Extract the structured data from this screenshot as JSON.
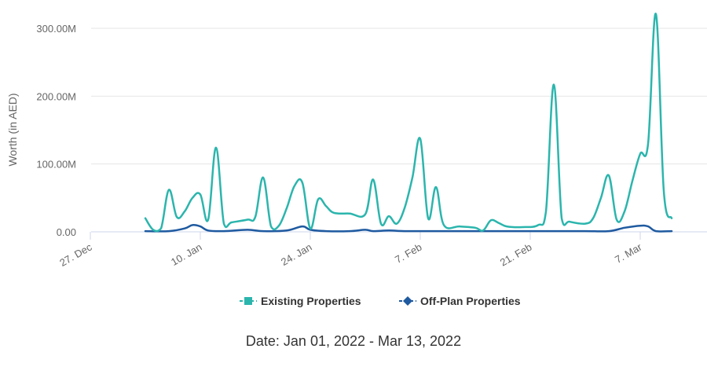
{
  "chart_data": {
    "type": "line",
    "ylabel": "Worth (in AED)",
    "ylim": [
      0,
      320
    ],
    "y_ticks": [
      {
        "value": 0,
        "label": "0.00"
      },
      {
        "value": 100,
        "label": "100.00M"
      },
      {
        "value": 200,
        "label": "200.00M"
      },
      {
        "value": 300,
        "label": "300.00M"
      }
    ],
    "x_ticks": [
      {
        "date": "2021-12-27",
        "label": "27. Dec"
      },
      {
        "date": "2022-01-10",
        "label": "10. Jan"
      },
      {
        "date": "2022-01-24",
        "label": "24. Jan"
      },
      {
        "date": "2022-02-07",
        "label": "7. Feb"
      },
      {
        "date": "2022-02-21",
        "label": "21. Feb"
      },
      {
        "date": "2022-03-07",
        "label": "7. Mar"
      }
    ],
    "grid": true,
    "legend_position": "bottom-center",
    "colors": {
      "existing": "#2bb5ad",
      "offplan": "#1f5aa0"
    },
    "series": [
      {
        "name": "Existing Properties",
        "points": [
          [
            "2022-01-03",
            20
          ],
          [
            "2022-01-04",
            3
          ],
          [
            "2022-01-05",
            5
          ],
          [
            "2022-01-06",
            62
          ],
          [
            "2022-01-07",
            22
          ],
          [
            "2022-01-08",
            30
          ],
          [
            "2022-01-09",
            50
          ],
          [
            "2022-01-10",
            55
          ],
          [
            "2022-01-11",
            18
          ],
          [
            "2022-01-12",
            124
          ],
          [
            "2022-01-13",
            12
          ],
          [
            "2022-01-14",
            14
          ],
          [
            "2022-01-16",
            18
          ],
          [
            "2022-01-17",
            22
          ],
          [
            "2022-01-18",
            80
          ],
          [
            "2022-01-19",
            8
          ],
          [
            "2022-01-20",
            9
          ],
          [
            "2022-01-21",
            35
          ],
          [
            "2022-01-22",
            68
          ],
          [
            "2022-01-23",
            72
          ],
          [
            "2022-01-24",
            5
          ],
          [
            "2022-01-25",
            48
          ],
          [
            "2022-01-26",
            38
          ],
          [
            "2022-01-27",
            28
          ],
          [
            "2022-01-29",
            27
          ],
          [
            "2022-01-31",
            26
          ],
          [
            "2022-02-01",
            77
          ],
          [
            "2022-02-02",
            12
          ],
          [
            "2022-02-03",
            23
          ],
          [
            "2022-02-04",
            12
          ],
          [
            "2022-02-05",
            35
          ],
          [
            "2022-02-06",
            80
          ],
          [
            "2022-02-07",
            137
          ],
          [
            "2022-02-08",
            20
          ],
          [
            "2022-02-09",
            66
          ],
          [
            "2022-02-10",
            10
          ],
          [
            "2022-02-12",
            8
          ],
          [
            "2022-02-14",
            6
          ],
          [
            "2022-02-15",
            2
          ],
          [
            "2022-02-16",
            17
          ],
          [
            "2022-02-17",
            13
          ],
          [
            "2022-02-18",
            8
          ],
          [
            "2022-02-20",
            7
          ],
          [
            "2022-02-22",
            10
          ],
          [
            "2022-02-23",
            30
          ],
          [
            "2022-02-24",
            217
          ],
          [
            "2022-02-25",
            20
          ],
          [
            "2022-02-26",
            15
          ],
          [
            "2022-02-28",
            12
          ],
          [
            "2022-03-01",
            20
          ],
          [
            "2022-03-02",
            50
          ],
          [
            "2022-03-03",
            83
          ],
          [
            "2022-03-04",
            18
          ],
          [
            "2022-03-05",
            30
          ],
          [
            "2022-03-06",
            75
          ],
          [
            "2022-03-07",
            115
          ],
          [
            "2022-03-08",
            130
          ],
          [
            "2022-03-09",
            321
          ],
          [
            "2022-03-10",
            60
          ],
          [
            "2022-03-11",
            20
          ]
        ]
      },
      {
        "name": "Off-Plan Properties",
        "points": [
          [
            "2022-01-03",
            1
          ],
          [
            "2022-01-06",
            1
          ],
          [
            "2022-01-08",
            5
          ],
          [
            "2022-01-09",
            10
          ],
          [
            "2022-01-10",
            8
          ],
          [
            "2022-01-11",
            2
          ],
          [
            "2022-01-13",
            1
          ],
          [
            "2022-01-16",
            3
          ],
          [
            "2022-01-18",
            1
          ],
          [
            "2022-01-21",
            2
          ],
          [
            "2022-01-23",
            8
          ],
          [
            "2022-01-24",
            3
          ],
          [
            "2022-01-26",
            1
          ],
          [
            "2022-01-29",
            1
          ],
          [
            "2022-01-31",
            3
          ],
          [
            "2022-02-01",
            1
          ],
          [
            "2022-02-03",
            2
          ],
          [
            "2022-02-05",
            1
          ],
          [
            "2022-02-07",
            1
          ],
          [
            "2022-02-10",
            1
          ],
          [
            "2022-02-14",
            1
          ],
          [
            "2022-02-17",
            1
          ],
          [
            "2022-02-21",
            1
          ],
          [
            "2022-02-24",
            1
          ],
          [
            "2022-02-28",
            1
          ],
          [
            "2022-03-03",
            1
          ],
          [
            "2022-03-05",
            6
          ],
          [
            "2022-03-07",
            9
          ],
          [
            "2022-03-08",
            8
          ],
          [
            "2022-03-09",
            1
          ],
          [
            "2022-03-11",
            1
          ]
        ]
      }
    ]
  },
  "caption": {
    "prefix": "Date: ",
    "start": "Jan 01, 2022",
    "separator": " - ",
    "end": "Mar 13, 2022"
  }
}
